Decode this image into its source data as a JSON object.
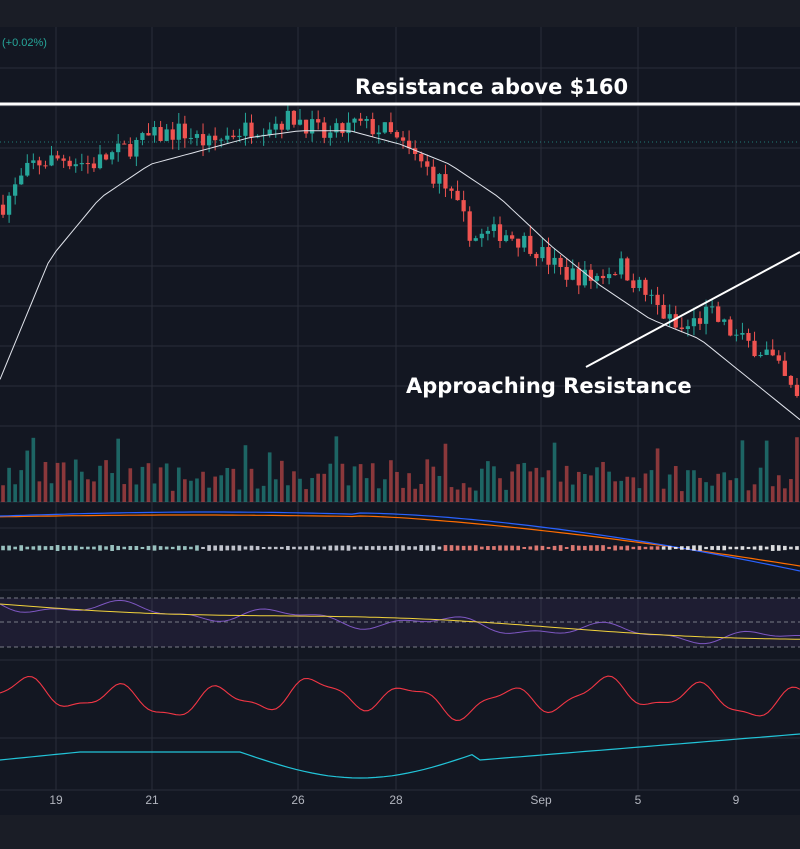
{
  "header": {
    "change_text": "(+0.02%)"
  },
  "annotations": {
    "resistance_label": "Resistance above $160",
    "approaching_label": "Approaching Resistance"
  },
  "colors": {
    "background": "#131722",
    "panel": "#1e2130",
    "grid": "#2a2e39",
    "up": "#26a69a",
    "down": "#ef5350",
    "ma_line": "#e0e3eb",
    "macd_line": "#2962ff",
    "signal_line": "#ff6d00",
    "rsi_line": "#7e57c2",
    "rsi_ma": "#f2d33c",
    "osc_red": "#f23645",
    "osc_cyan": "#22c4d8",
    "annotation": "#ffffff"
  },
  "chart_data": {
    "type": "candlestick",
    "x_tick_labels": [
      "19",
      "21",
      "26",
      "28",
      "Sep",
      "5",
      "9"
    ],
    "price_samples": [
      146,
      152,
      153,
      152,
      154,
      156,
      157,
      155,
      157,
      158,
      159,
      156,
      158,
      157,
      153,
      149,
      141,
      142,
      140,
      136,
      135,
      137,
      132,
      127,
      130,
      126,
      124,
      117
    ],
    "moving_average_samples": [
      120,
      138,
      147,
      152,
      154,
      156,
      157,
      157,
      155,
      152,
      147,
      140,
      134,
      129,
      126,
      120,
      114
    ],
    "panels": [
      "price",
      "volume",
      "macd",
      "rsi",
      "oscillator",
      "trend"
    ],
    "legend": "none",
    "grid": true
  }
}
